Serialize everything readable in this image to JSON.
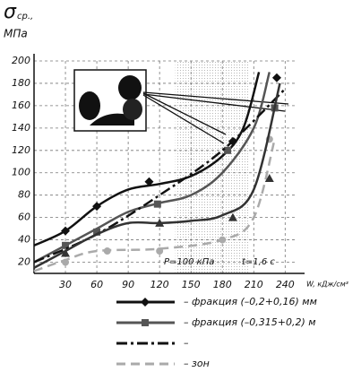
{
  "chart_data": {
    "type": "line",
    "y_label": "σ",
    "y_label_sub": "ср.,",
    "y_unit": "МПа",
    "x_label": "W, кДж/см³",
    "xlim": [
      0,
      250
    ],
    "ylim": [
      10,
      200
    ],
    "xticks": [
      30,
      60,
      90,
      120,
      150,
      180,
      210,
      240
    ],
    "yticks": [
      20,
      40,
      60,
      80,
      100,
      120,
      140,
      160,
      180,
      200
    ],
    "grid": true,
    "zone": [
      135,
      205
    ],
    "annotations": [
      "P=100 кПа",
      "t=1,6 с"
    ],
    "series": [
      {
        "name": "– фракция (–0,2+0,16) мм",
        "color": "#111111",
        "dash": "none",
        "marker": "diamond",
        "x": [
          0,
          30,
          60,
          90,
          120,
          150,
          180,
          200,
          215
        ],
        "values": [
          35,
          48,
          70,
          85,
          90,
          97,
          115,
          140,
          190
        ],
        "marker_x": [
          30,
          60,
          110,
          190,
          232
        ],
        "marker_values": [
          48,
          70,
          92,
          128,
          185
        ]
      },
      {
        "name": "– фракция (–0,315+0,2) м",
        "color": "#555555",
        "dash": "none",
        "marker": "square",
        "x": [
          0,
          30,
          60,
          90,
          120,
          150,
          180,
          210,
          225
        ],
        "values": [
          20,
          35,
          50,
          65,
          73,
          80,
          100,
          140,
          190
        ],
        "marker_x": [
          30,
          60,
          118,
          185,
          230
        ],
        "marker_values": [
          35,
          47,
          72,
          120,
          158
        ]
      },
      {
        "name": "–",
        "color": "#111111",
        "dash": "12 4 3 4",
        "marker": "none",
        "x": [
          0,
          60,
          120,
          180,
          240
        ],
        "values": [
          20,
          45,
          80,
          120,
          175
        ]
      },
      {
        "name": "– зон",
        "color": "#aaaaaa",
        "dash": "10 6",
        "marker": "circle",
        "x": [
          0,
          30,
          60,
          120,
          180,
          210,
          230
        ],
        "values": [
          12,
          22,
          30,
          32,
          40,
          60,
          130
        ],
        "marker_x": [
          30,
          70,
          120,
          180,
          225
        ],
        "marker_values": [
          20,
          30,
          30,
          40,
          130
        ]
      },
      {
        "color": "#333333",
        "dash": "none",
        "marker": "triangle",
        "x": [
          0,
          30,
          60,
          90,
          120,
          150,
          180,
          210,
          235
        ],
        "values": [
          15,
          30,
          45,
          55,
          55,
          57,
          62,
          85,
          180
        ],
        "marker_x": [
          30,
          120,
          190,
          225
        ],
        "marker_values": [
          28,
          55,
          60,
          95
        ]
      }
    ]
  }
}
